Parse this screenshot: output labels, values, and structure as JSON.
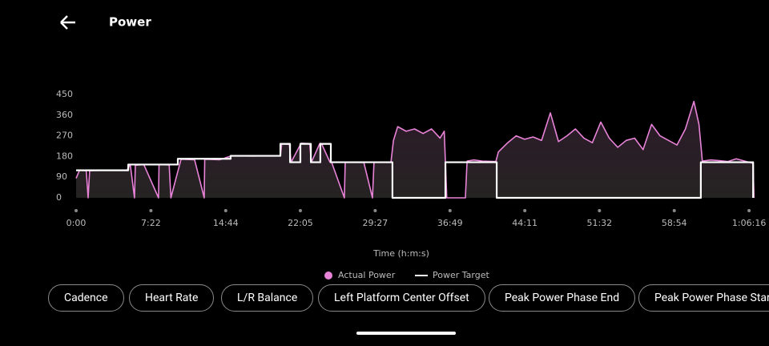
{
  "header": {
    "title": "Power"
  },
  "chart_data": {
    "type": "line",
    "xlabel": "Time (h:m:s)",
    "xlim": [
      0,
      4010
    ],
    "xticks": [
      {
        "value": 0,
        "label": "0:00"
      },
      {
        "value": 442,
        "label": "7:22"
      },
      {
        "value": 884,
        "label": "14:44"
      },
      {
        "value": 1325,
        "label": "22:05"
      },
      {
        "value": 1767,
        "label": "29:27"
      },
      {
        "value": 2209,
        "label": "36:49"
      },
      {
        "value": 2651,
        "label": "44:11"
      },
      {
        "value": 3092,
        "label": "51:32"
      },
      {
        "value": 3534,
        "label": "58:54"
      },
      {
        "value": 3976,
        "label": "1:06:16"
      }
    ],
    "ylim": [
      0,
      450
    ],
    "yticks": [
      0,
      90,
      180,
      270,
      360,
      450
    ],
    "series": [
      {
        "name": "Actual Power",
        "color": "#e883d8",
        "x": [
          0,
          20,
          60,
          71,
          80,
          150,
          300,
          320,
          345,
          350,
          400,
          487,
          490,
          550,
          560,
          620,
          700,
          757,
          760,
          850,
          913,
          950,
          1050,
          1150,
          1207,
          1215,
          1260,
          1270,
          1330,
          1380,
          1390,
          1440,
          1450,
          1500,
          1510,
          1585,
          1590,
          1700,
          1751,
          1760,
          1860,
          1875,
          1900,
          1950,
          2000,
          2050,
          2100,
          2150,
          2175,
          2190,
          2300,
          2310,
          2350,
          2400,
          2480,
          2495,
          2550,
          2600,
          2650,
          2700,
          2750,
          2802,
          2850,
          2900,
          2950,
          3000,
          3050,
          3100,
          3150,
          3200,
          3250,
          3300,
          3350,
          3400,
          3450,
          3500,
          3550,
          3600,
          3650,
          3680,
          3700,
          3750,
          3800,
          3850,
          3900,
          3950,
          4000,
          4005
        ],
        "values": [
          85,
          120,
          118,
          0,
          118,
          120,
          120,
          145,
          0,
          142,
          145,
          0,
          145,
          143,
          0,
          168,
          166,
          0,
          168,
          166,
          182,
          183,
          182,
          184,
          183,
          235,
          233,
          155,
          238,
          236,
          155,
          237,
          236,
          155,
          154,
          0,
          155,
          154,
          0,
          155,
          154,
          250,
          310,
          290,
          300,
          280,
          300,
          260,
          290,
          0,
          0,
          160,
          165,
          160,
          158,
          200,
          240,
          270,
          255,
          265,
          250,
          370,
          245,
          270,
          300,
          260,
          240,
          330,
          260,
          220,
          250,
          260,
          210,
          320,
          270,
          250,
          230,
          300,
          420,
          320,
          160,
          165,
          162,
          158,
          170,
          160,
          150,
          0
        ]
      },
      {
        "name": "Power Target",
        "color": "#ffffff",
        "x": [
          0,
          308,
          308,
          601,
          601,
          913,
          913,
          1207,
          1207,
          1264,
          1264,
          1325,
          1325,
          1387,
          1387,
          1443,
          1443,
          1505,
          1505,
          1869,
          1869,
          2182,
          2182,
          2485,
          2485,
          3691,
          3691,
          4000,
          4000
        ],
        "values": [
          120,
          120,
          145,
          145,
          170,
          170,
          183,
          183,
          235,
          235,
          155,
          155,
          235,
          235,
          155,
          155,
          235,
          235,
          155,
          155,
          0,
          0,
          155,
          155,
          0,
          0,
          155,
          155,
          0
        ]
      }
    ]
  },
  "chips": [
    "Cadence",
    "Heart Rate",
    "L/R Balance",
    "Left Platform Center Offset",
    "Peak Power Phase End",
    "Peak Power Phase Start"
  ]
}
